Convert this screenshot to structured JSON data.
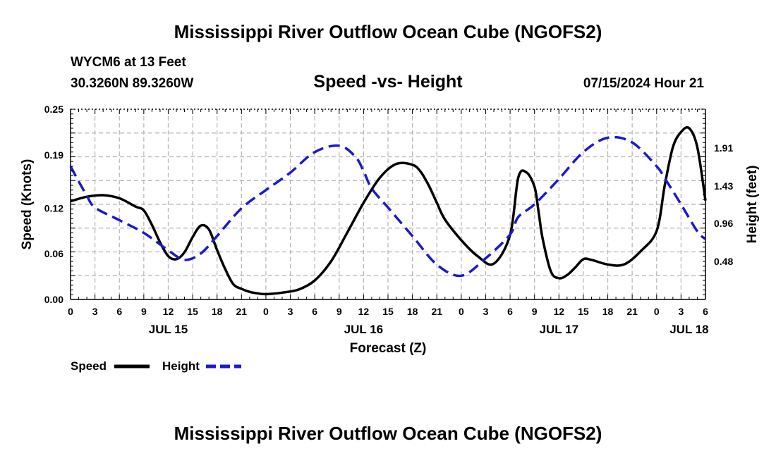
{
  "header": {
    "title": "Mississippi River Outflow Ocean Cube (NGOFS2)",
    "station": "WYCM6 at 13 Feet",
    "coords": "30.3260N  89.3260W",
    "subtitle": "Speed -vs- Height",
    "datetime": "07/15/2024 Hour 21"
  },
  "footer": {
    "title": "Mississippi River Outflow Ocean Cube (NGOFS2)"
  },
  "legend": {
    "speed_label": "Speed",
    "height_label": "Height"
  },
  "colors": {
    "speed": "#000000",
    "height": "#1a1acc",
    "grid": "#b4b4b4"
  },
  "chart_data": {
    "type": "line",
    "title": "Speed -vs- Height",
    "xlabel": "Forecast (Z)",
    "ylabel": "Speed (Knots)",
    "y2label": "Height (feet)",
    "x_units": "hours since JUL 15 00Z",
    "xlim": [
      0,
      78
    ],
    "ylim": [
      0,
      0.25
    ],
    "y2lim": [
      0,
      2.4
    ],
    "x_ticks": [
      0,
      3,
      6,
      9,
      12,
      15,
      18,
      21,
      24,
      27,
      30,
      33,
      36,
      39,
      42,
      45,
      48,
      51,
      54,
      57,
      60,
      63,
      66,
      69,
      72,
      75,
      78
    ],
    "x_tick_labels": [
      "0",
      "3",
      "6",
      "9",
      "12",
      "15",
      "18",
      "21",
      "0",
      "3",
      "6",
      "9",
      "12",
      "15",
      "18",
      "21",
      "0",
      "3",
      "6",
      "9",
      "12",
      "15",
      "18",
      "21",
      "0",
      "3",
      "6"
    ],
    "date_labels": [
      {
        "x": 12,
        "label": "JUL 15"
      },
      {
        "x": 36,
        "label": "JUL 16"
      },
      {
        "x": 60,
        "label": "JUL 17"
      },
      {
        "x": 76,
        "label": "JUL 18"
      }
    ],
    "y_ticks": [
      0.0,
      0.06,
      0.12,
      0.19,
      0.25
    ],
    "y_tick_labels": [
      "0.00",
      "0.06",
      "0.12",
      "0.19",
      "0.25"
    ],
    "y2_ticks": [
      0.48,
      0.96,
      1.43,
      1.91
    ],
    "y2_tick_labels": [
      "0.48",
      "0.96",
      "1.43",
      "1.91"
    ],
    "grid": true,
    "legend_position": "bottom-left",
    "series": [
      {
        "name": "Speed",
        "axis": "left",
        "style": "solid",
        "x": [
          0,
          2,
          4,
          6,
          8,
          9,
          10,
          11,
          12,
          13,
          14,
          15,
          16,
          17,
          18,
          19,
          20,
          21,
          22,
          23,
          24,
          26,
          28,
          30,
          32,
          34,
          36,
          38,
          40,
          42,
          43,
          44,
          45,
          46,
          48,
          50,
          52,
          54,
          55,
          56,
          57,
          57.5,
          58,
          59,
          60,
          61,
          62,
          63,
          64,
          66,
          68,
          70,
          72,
          73,
          74,
          75,
          76,
          77,
          78
        ],
        "y": [
          0.129,
          0.135,
          0.137,
          0.133,
          0.122,
          0.117,
          0.098,
          0.075,
          0.057,
          0.053,
          0.062,
          0.082,
          0.097,
          0.092,
          0.065,
          0.04,
          0.02,
          0.014,
          0.01,
          0.008,
          0.007,
          0.009,
          0.013,
          0.025,
          0.05,
          0.088,
          0.127,
          0.16,
          0.178,
          0.177,
          0.168,
          0.15,
          0.127,
          0.105,
          0.078,
          0.057,
          0.047,
          0.085,
          0.16,
          0.167,
          0.148,
          0.115,
          0.08,
          0.037,
          0.028,
          0.032,
          0.042,
          0.053,
          0.052,
          0.046,
          0.046,
          0.063,
          0.09,
          0.15,
          0.2,
          0.22,
          0.225,
          0.2,
          0.13
        ]
      },
      {
        "name": "Height",
        "axis": "right",
        "style": "dashed",
        "x": [
          0,
          1,
          2,
          3,
          6,
          9,
          12,
          14,
          16,
          18,
          21,
          24,
          27,
          30,
          33,
          35,
          36,
          37,
          39,
          42,
          45,
          48,
          51,
          54,
          55,
          57,
          60,
          63,
          66,
          69,
          72,
          73,
          75,
          77,
          78
        ],
        "y": [
          1.68,
          1.49,
          1.31,
          1.16,
          1.0,
          0.84,
          0.62,
          0.5,
          0.58,
          0.8,
          1.15,
          1.38,
          1.6,
          1.86,
          1.94,
          1.8,
          1.62,
          1.4,
          1.16,
          0.8,
          0.44,
          0.3,
          0.52,
          0.82,
          1.04,
          1.2,
          1.52,
          1.86,
          2.04,
          1.98,
          1.68,
          1.53,
          1.2,
          0.86,
          0.76
        ]
      }
    ]
  }
}
